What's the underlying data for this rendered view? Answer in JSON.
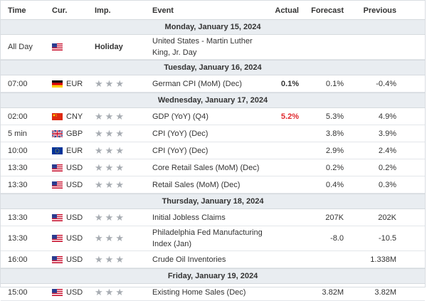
{
  "columns": {
    "time": "Time",
    "currency": "Cur.",
    "importance": "Imp.",
    "event": "Event",
    "actual": "Actual",
    "forecast": "Forecast",
    "previous": "Previous"
  },
  "colors": {
    "accent_red": "#e0282e",
    "day_header_bg": "#e9edf1",
    "star": "#a8adb3"
  },
  "days": [
    {
      "label": "Monday, January 15, 2024",
      "events": [
        {
          "time": "All Day",
          "flag": "us-flag-icon",
          "currency": "",
          "importance": "Holiday",
          "event": "United States - Martin Luther King, Jr. Day",
          "actual": "",
          "forecast": "",
          "previous": ""
        }
      ]
    },
    {
      "label": "Tuesday, January 16, 2024",
      "events": [
        {
          "time": "07:00",
          "flag": "de-flag-icon",
          "currency": "EUR",
          "importance": "3 stars",
          "event": "German CPI (MoM) (Dec)",
          "actual": "0.1%",
          "forecast": "0.1%",
          "previous": "-0.4%"
        }
      ]
    },
    {
      "label": "Wednesday, January 17, 2024",
      "events": [
        {
          "time": "02:00",
          "flag": "cn-flag-icon",
          "currency": "CNY",
          "importance": "3 stars",
          "event": "GDP (YoY) (Q4)",
          "actual": "5.2%",
          "forecast": "5.3%",
          "previous": "4.9%"
        },
        {
          "time": "5 min",
          "flag": "gb-flag-icon",
          "currency": "GBP",
          "importance": "3 stars",
          "event": "CPI (YoY) (Dec)",
          "actual": "",
          "forecast": "3.8%",
          "previous": "3.9%"
        },
        {
          "time": "10:00",
          "flag": "eu-flag-icon",
          "currency": "EUR",
          "importance": "3 stars",
          "event": "CPI (YoY) (Dec)",
          "actual": "",
          "forecast": "2.9%",
          "previous": "2.4%"
        },
        {
          "time": "13:30",
          "flag": "us-flag-icon",
          "currency": "USD",
          "importance": "3 stars",
          "event": "Core Retail Sales (MoM) (Dec)",
          "actual": "",
          "forecast": "0.2%",
          "previous": "0.2%"
        },
        {
          "time": "13:30",
          "flag": "us-flag-icon",
          "currency": "USD",
          "importance": "3 stars",
          "event": "Retail Sales (MoM) (Dec)",
          "actual": "",
          "forecast": "0.4%",
          "previous": "0.3%"
        }
      ]
    },
    {
      "label": "Thursday, January 18, 2024",
      "events": [
        {
          "time": "13:30",
          "flag": "us-flag-icon",
          "currency": "USD",
          "importance": "3 stars",
          "event": "Initial Jobless Claims",
          "actual": "",
          "forecast": "207K",
          "previous": "202K"
        },
        {
          "time": "13:30",
          "flag": "us-flag-icon",
          "currency": "USD",
          "importance": "3 stars",
          "event": "Philadelphia Fed Manufacturing Index (Jan)",
          "actual": "",
          "forecast": "-8.0",
          "previous": "-10.5"
        },
        {
          "time": "16:00",
          "flag": "us-flag-icon",
          "currency": "USD",
          "importance": "3 stars",
          "event": "Crude Oil Inventories",
          "actual": "",
          "forecast": "",
          "previous": "1.338M"
        }
      ]
    },
    {
      "label": "Friday, January 19, 2024",
      "events": [
        {
          "time": "15:00",
          "flag": "us-flag-icon",
          "currency": "USD",
          "importance": "3 stars",
          "event": "Existing Home Sales (Dec)",
          "actual": "",
          "forecast": "3.82M",
          "previous": "3.82M"
        }
      ]
    }
  ]
}
